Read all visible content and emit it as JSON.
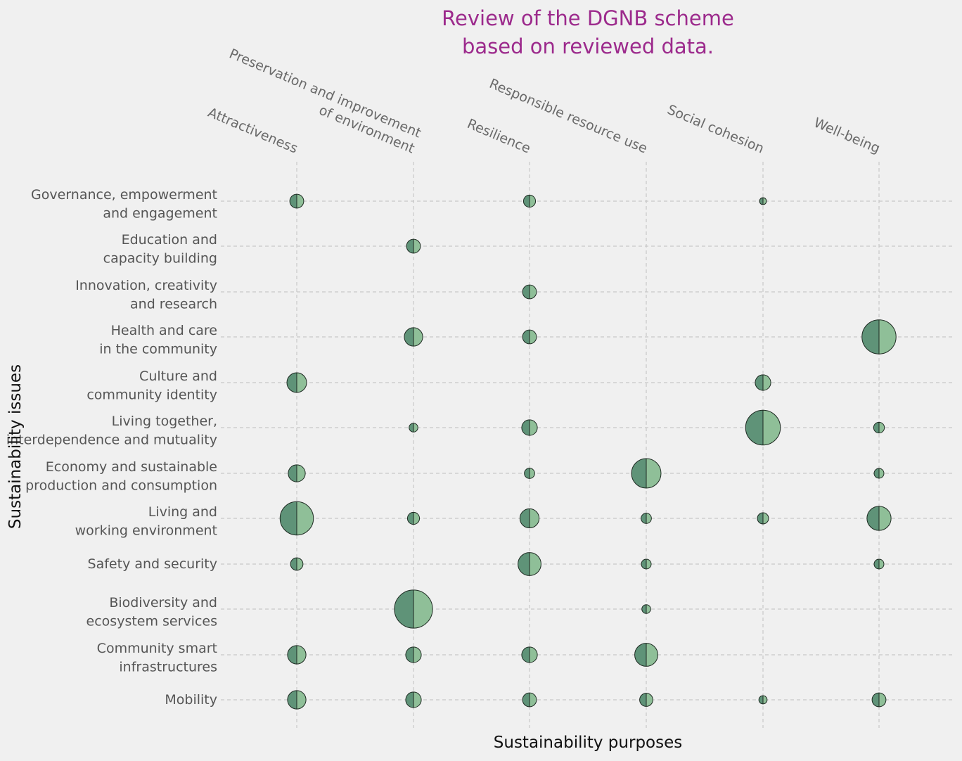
{
  "chart_data": {
    "type": "scatter",
    "title": [
      "Review of the DGNB scheme",
      "based on reviewed data."
    ],
    "xlabel": "Sustainability purposes",
    "ylabel": "Sustainability issues",
    "grid": true,
    "x_categories": [
      [
        "Attractiveness"
      ],
      [
        "Preservation and improvement",
        "of environment"
      ],
      [
        "Resilience"
      ],
      [
        "Responsible resource use"
      ],
      [
        "Social cohesion"
      ],
      [
        "Well-being"
      ]
    ],
    "y_categories": [
      [
        "Governance, empowerment",
        "and engagement"
      ],
      [
        "Education and",
        "capacity building"
      ],
      [
        "Innovation, creativity",
        "and research"
      ],
      [
        "Health and care",
        "in the community"
      ],
      [
        "Culture and",
        "community identity"
      ],
      [
        "Living together,",
        "interdependence and mutuality"
      ],
      [
        "Economy and sustainable",
        "production and consumption"
      ],
      [
        "Living and",
        "working environment"
      ],
      [
        "Safety and security"
      ],
      [
        "Biodiversity and",
        "ecosystem services"
      ],
      [
        "Community smart",
        "infrastructures"
      ],
      [
        "Mobility"
      ]
    ],
    "points": [
      {
        "x": 0,
        "y": 0,
        "size": 2
      },
      {
        "x": 2,
        "y": 0,
        "size": 1.5
      },
      {
        "x": 4,
        "y": 0,
        "size": 0.5
      },
      {
        "x": 1,
        "y": 1,
        "size": 2
      },
      {
        "x": 2,
        "y": 2,
        "size": 2
      },
      {
        "x": 1,
        "y": 3,
        "size": 3.5
      },
      {
        "x": 2,
        "y": 3,
        "size": 2
      },
      {
        "x": 5,
        "y": 3,
        "size": 12
      },
      {
        "x": 0,
        "y": 4,
        "size": 4
      },
      {
        "x": 4,
        "y": 4,
        "size": 2.5
      },
      {
        "x": 1,
        "y": 5,
        "size": 0.8
      },
      {
        "x": 2,
        "y": 5,
        "size": 2.5
      },
      {
        "x": 4,
        "y": 5,
        "size": 12.5
      },
      {
        "x": 5,
        "y": 5,
        "size": 1.2
      },
      {
        "x": 0,
        "y": 6,
        "size": 3
      },
      {
        "x": 2,
        "y": 6,
        "size": 1.1
      },
      {
        "x": 3,
        "y": 6,
        "size": 9
      },
      {
        "x": 5,
        "y": 6,
        "size": 1
      },
      {
        "x": 0,
        "y": 7,
        "size": 11.5
      },
      {
        "x": 1,
        "y": 7,
        "size": 1.5
      },
      {
        "x": 2,
        "y": 7,
        "size": 3.8
      },
      {
        "x": 3,
        "y": 7,
        "size": 1.1
      },
      {
        "x": 4,
        "y": 7,
        "size": 1.3
      },
      {
        "x": 5,
        "y": 7,
        "size": 6
      },
      {
        "x": 0,
        "y": 8,
        "size": 1.6
      },
      {
        "x": 2,
        "y": 8,
        "size": 5.5
      },
      {
        "x": 3,
        "y": 8,
        "size": 1
      },
      {
        "x": 5,
        "y": 8,
        "size": 1
      },
      {
        "x": 1,
        "y": 9,
        "size": 15
      },
      {
        "x": 3,
        "y": 9,
        "size": 0.8
      },
      {
        "x": 0,
        "y": 10,
        "size": 3.5
      },
      {
        "x": 1,
        "y": 10,
        "size": 2.5
      },
      {
        "x": 2,
        "y": 10,
        "size": 2.5
      },
      {
        "x": 3,
        "y": 10,
        "size": 5.5
      },
      {
        "x": 0,
        "y": 11,
        "size": 3.5
      },
      {
        "x": 1,
        "y": 11,
        "size": 2.5
      },
      {
        "x": 2,
        "y": 11,
        "size": 2
      },
      {
        "x": 3,
        "y": 11,
        "size": 1.8
      },
      {
        "x": 4,
        "y": 11,
        "size": 0.7
      },
      {
        "x": 5,
        "y": 11,
        "size": 2
      }
    ],
    "colors": {
      "marker_left": "#5f9378",
      "marker_right": "#8fbf98",
      "marker_edge": "#1e2a22",
      "title": "#9c2a8c",
      "grid": "#c8c8c8",
      "background": "#f0f0f0"
    }
  }
}
